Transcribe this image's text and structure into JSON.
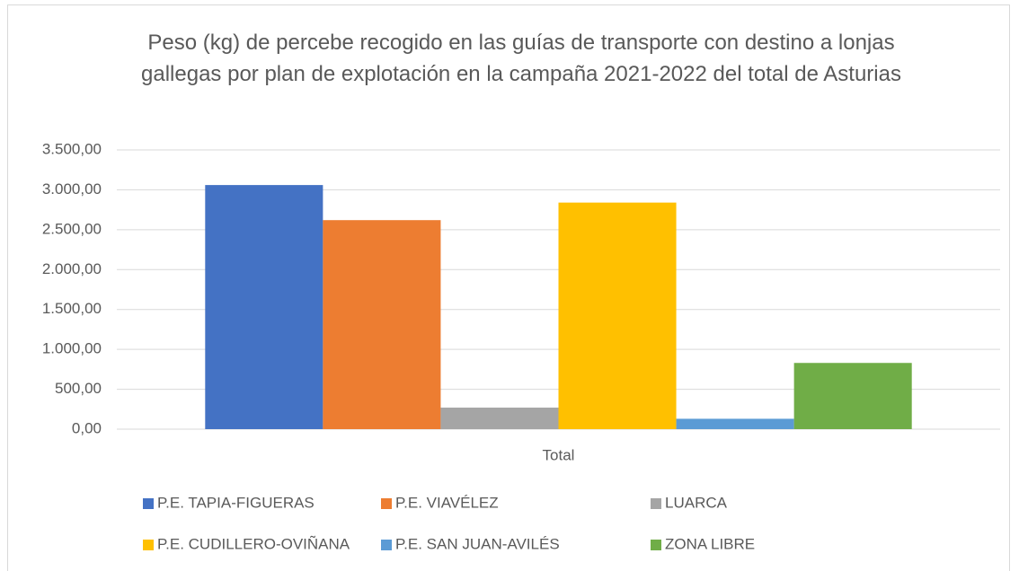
{
  "chart_data": {
    "type": "bar",
    "title": "Peso (kg) de percebe recogido en las guías de transporte con destino a lonjas gallegas por plan de explotación en la campaña 2021-2022 del total de Asturias",
    "categories": [
      "Total"
    ],
    "series": [
      {
        "name": "P.E. TAPIA-FIGUERAS",
        "color": "#4472c4",
        "values": [
          3060
        ]
      },
      {
        "name": "P.E. VIAVÉLEZ",
        "color": "#ed7d31",
        "values": [
          2620
        ]
      },
      {
        "name": "LUARCA",
        "color": "#a5a5a5",
        "values": [
          270
        ]
      },
      {
        "name": "P.E. CUDILLERO-OVIÑANA",
        "color": "#ffc000",
        "values": [
          2840
        ]
      },
      {
        "name": "P.E. SAN JUAN-AVILÉS",
        "color": "#5b9bd5",
        "values": [
          130
        ]
      },
      {
        "name": "ZONA LIBRE",
        "color": "#70ad47",
        "values": [
          830
        ]
      }
    ],
    "ylim": [
      0,
      3500
    ],
    "yticks": [
      {
        "value": 0,
        "label": "0,00"
      },
      {
        "value": 500,
        "label": "500,00"
      },
      {
        "value": 1000,
        "label": "1.000,00"
      },
      {
        "value": 1500,
        "label": "1.500,00"
      },
      {
        "value": 2000,
        "label": "2.000,00"
      },
      {
        "value": 2500,
        "label": "2.500,00"
      },
      {
        "value": 3000,
        "label": "3.000,00"
      },
      {
        "value": 3500,
        "label": "3.500,00"
      }
    ],
    "grid": true,
    "legend": "bottom"
  }
}
